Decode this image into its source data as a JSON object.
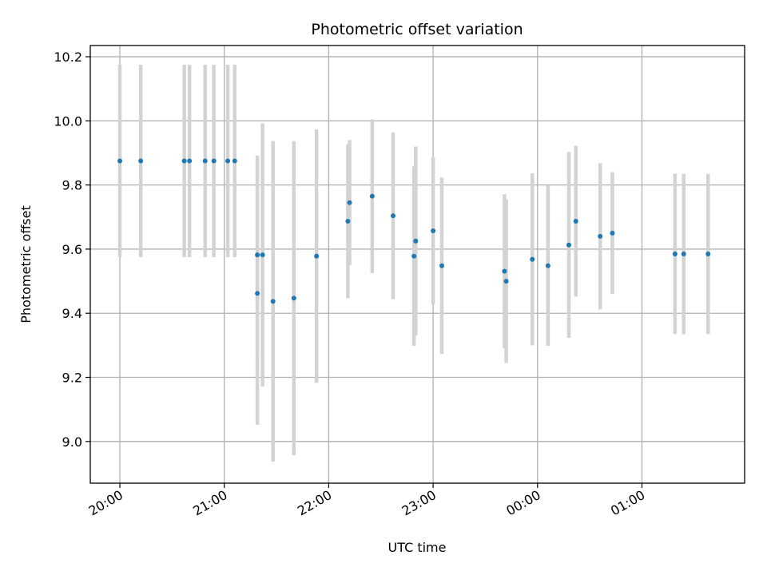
{
  "chart_data": {
    "type": "scatter",
    "title": "Photometric offset variation",
    "xlabel": "UTC time",
    "ylabel": "Photometric offset",
    "x_ticks": [
      "20:00",
      "21:00",
      "22:00",
      "23:00",
      "00:00",
      "01:00"
    ],
    "y_ticks": [
      "9.0",
      "9.2",
      "9.4",
      "9.6",
      "9.8",
      "10.0",
      "10.2"
    ],
    "xlim": [
      "19:43",
      "01:59"
    ],
    "ylim": [
      8.87,
      10.235
    ],
    "grid": true,
    "colors": {
      "point": "#1f77b4",
      "errorbar": "#d3d3d3",
      "grid": "#b0b0b0"
    },
    "points": [
      {
        "time": "20:00",
        "y": 9.875,
        "err": 0.3
      },
      {
        "time": "20:12",
        "y": 9.875,
        "err": 0.3
      },
      {
        "time": "20:37",
        "y": 9.875,
        "err": 0.3
      },
      {
        "time": "20:40",
        "y": 9.875,
        "err": 0.3
      },
      {
        "time": "20:49",
        "y": 9.875,
        "err": 0.3
      },
      {
        "time": "20:54",
        "y": 9.875,
        "err": 0.3
      },
      {
        "time": "21:02",
        "y": 9.875,
        "err": 0.3
      },
      {
        "time": "21:06",
        "y": 9.875,
        "err": 0.3
      },
      {
        "time": "21:19",
        "y": 9.582,
        "err": 0.31
      },
      {
        "time": "21:19",
        "y": 9.462,
        "err": 0.41
      },
      {
        "time": "21:22",
        "y": 9.582,
        "err": 0.41
      },
      {
        "time": "21:28",
        "y": 9.437,
        "err": 0.5
      },
      {
        "time": "21:40",
        "y": 9.447,
        "err": 0.49
      },
      {
        "time": "21:53",
        "y": 9.578,
        "err": 0.395
      },
      {
        "time": "22:11",
        "y": 9.687,
        "err": 0.24
      },
      {
        "time": "22:12",
        "y": 9.745,
        "err": 0.195
      },
      {
        "time": "22:25",
        "y": 9.765,
        "err": 0.24
      },
      {
        "time": "22:37",
        "y": 9.704,
        "err": 0.26
      },
      {
        "time": "22:49",
        "y": 9.578,
        "err": 0.28
      },
      {
        "time": "22:50",
        "y": 9.625,
        "err": 0.295
      },
      {
        "time": "23:00",
        "y": 9.657,
        "err": 0.23
      },
      {
        "time": "23:05",
        "y": 9.548,
        "err": 0.275
      },
      {
        "time": "23:41",
        "y": 9.531,
        "err": 0.24
      },
      {
        "time": "23:42",
        "y": 9.5,
        "err": 0.255
      },
      {
        "time": "23:57",
        "y": 9.568,
        "err": 0.268
      },
      {
        "time": "00:06",
        "y": 9.548,
        "err": 0.25
      },
      {
        "time": "00:18",
        "y": 9.613,
        "err": 0.29
      },
      {
        "time": "00:22",
        "y": 9.687,
        "err": 0.235
      },
      {
        "time": "00:36",
        "y": 9.64,
        "err": 0.228
      },
      {
        "time": "00:43",
        "y": 9.65,
        "err": 0.19
      },
      {
        "time": "01:19",
        "y": 9.585,
        "err": 0.25
      },
      {
        "time": "01:24",
        "y": 9.585,
        "err": 0.25
      },
      {
        "time": "01:38",
        "y": 9.585,
        "err": 0.25
      }
    ]
  }
}
